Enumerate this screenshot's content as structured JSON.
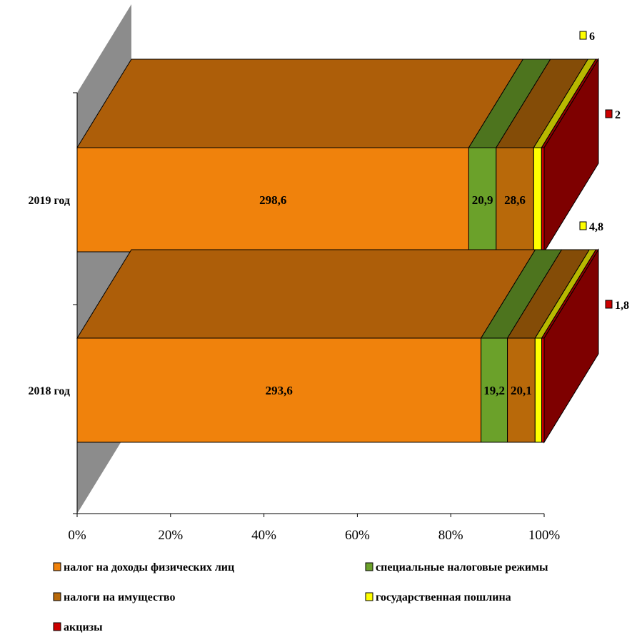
{
  "chart_data": {
    "type": "bar",
    "stacked": "percent",
    "orientation": "horizontal",
    "style": "3d",
    "categories": [
      "2019 год",
      "2018 год"
    ],
    "series": [
      {
        "name": "налог на доходы физических лиц",
        "values": [
          298.6,
          293.6
        ],
        "labels": [
          "298,6",
          "293,6"
        ],
        "color": "#F0820C"
      },
      {
        "name": "специальные налоговые режимы",
        "values": [
          20.9,
          19.2
        ],
        "labels": [
          "20,9",
          "19,2"
        ],
        "color": "#6BA12A"
      },
      {
        "name": "налоги на имущество",
        "values": [
          28.6,
          20.1
        ],
        "labels": [
          "28,6",
          "20,1"
        ],
        "color": "#B8690A"
      },
      {
        "name": "государственная пошлина",
        "values": [
          6,
          4.8
        ],
        "labels": [
          "6",
          "4,8"
        ],
        "color": "#FFFF00"
      },
      {
        "name": "акцизы",
        "values": [
          2,
          1.8
        ],
        "labels": [
          "2",
          "1,8"
        ],
        "color": "#CC0000"
      }
    ],
    "xaxis": {
      "ticks": [
        "0%",
        "20%",
        "40%",
        "60%",
        "80%",
        "100%"
      ],
      "range": [
        0,
        100
      ]
    },
    "legend": "bottom"
  }
}
